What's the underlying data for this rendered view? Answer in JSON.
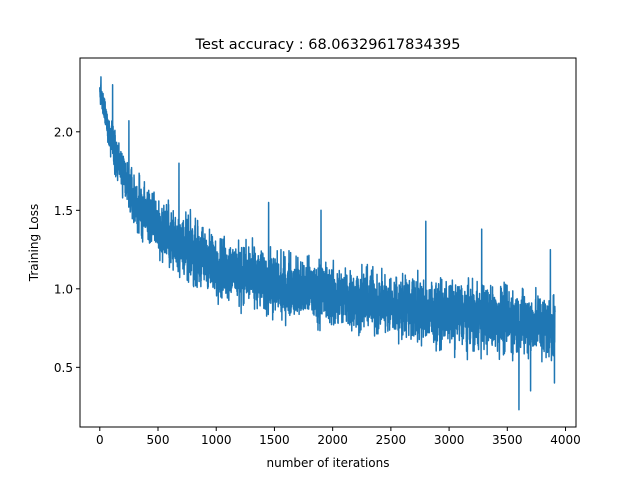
{
  "chart_data": {
    "type": "line",
    "title": "Test accuracy : 68.06329617834395",
    "xlabel": "number of iterations",
    "ylabel": "Training Loss",
    "xlim": [
      -170,
      4090
    ],
    "ylim": [
      0.12,
      2.47
    ],
    "xticks": [
      0,
      500,
      1000,
      1500,
      2000,
      2500,
      3000,
      3500,
      4000
    ],
    "yticks": [
      0.5,
      1.0,
      1.5,
      2.0
    ],
    "xtick_labels": [
      "0",
      "500",
      "1000",
      "1500",
      "2000",
      "2500",
      "3000",
      "3500",
      "4000"
    ],
    "ytick_labels": [
      "0.5",
      "1.0",
      "1.5",
      "2.0"
    ],
    "grid": false,
    "series": [
      {
        "color": "#1f77b4",
        "x_start": 0,
        "x_end": 3910,
        "n_points": 3911,
        "trend": {
          "x": [
            0,
            100,
            200,
            300,
            500,
            700,
            1000,
            1500,
            2000,
            2500,
            3000,
            3500,
            3910
          ],
          "y": [
            2.25,
            1.95,
            1.72,
            1.55,
            1.4,
            1.28,
            1.15,
            1.03,
            0.96,
            0.9,
            0.84,
            0.8,
            0.76
          ]
        },
        "noise_band": {
          "x": [
            0,
            100,
            200,
            300,
            500,
            700,
            1000,
            1500,
            2000,
            2500,
            3000,
            3500,
            3910
          ],
          "half_width": [
            0.1,
            0.18,
            0.22,
            0.25,
            0.27,
            0.28,
            0.28,
            0.28,
            0.28,
            0.28,
            0.29,
            0.3,
            0.3
          ]
        },
        "spikes": [
          {
            "x": 10,
            "y": 2.35
          },
          {
            "x": 110,
            "y": 2.3
          },
          {
            "x": 250,
            "y": 2.07
          },
          {
            "x": 680,
            "y": 1.8
          },
          {
            "x": 1450,
            "y": 1.55
          },
          {
            "x": 1900,
            "y": 1.5
          },
          {
            "x": 2800,
            "y": 1.43
          },
          {
            "x": 3280,
            "y": 1.38
          },
          {
            "x": 3600,
            "y": 0.23
          },
          {
            "x": 3700,
            "y": 0.35
          },
          {
            "x": 3870,
            "y": 1.25
          },
          {
            "x": 3905,
            "y": 0.4
          }
        ]
      }
    ]
  }
}
